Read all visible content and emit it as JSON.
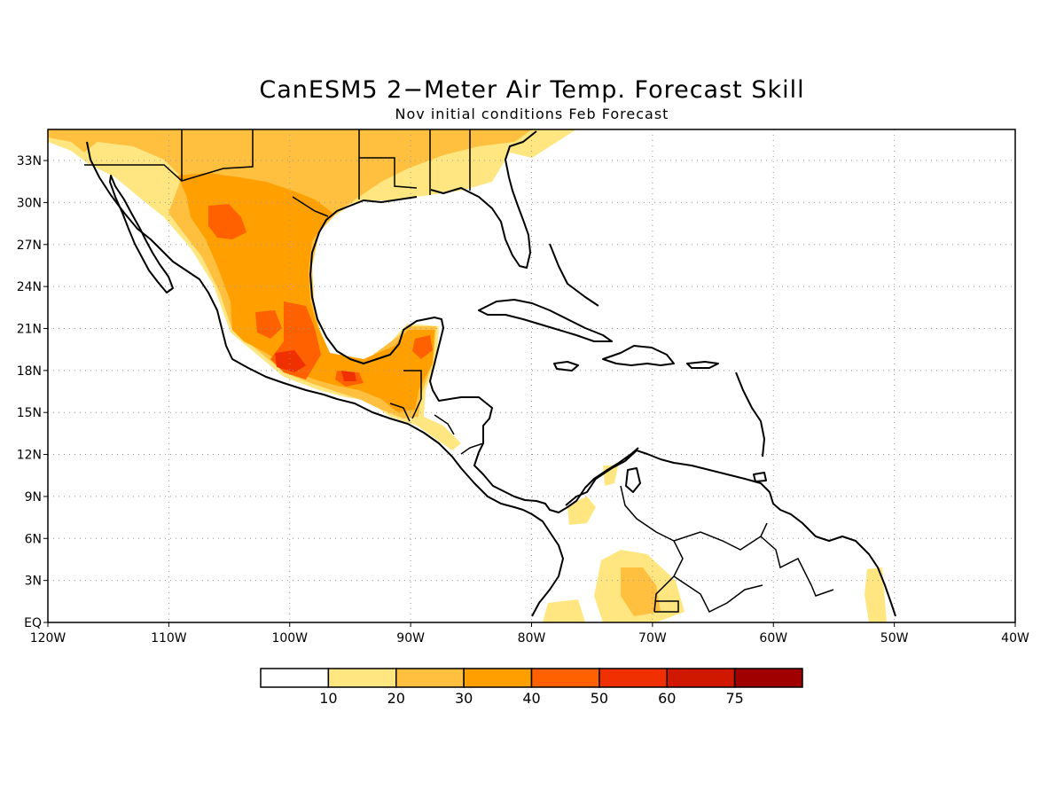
{
  "title": "CanESM5 2−Meter Air Temp. Forecast Skill",
  "subtitle": "Nov initial conditions  Feb Forecast",
  "lat_labels": [
    "EQ",
    "3N",
    "6N",
    "9N",
    "12N",
    "15N",
    "18N",
    "21N",
    "24N",
    "27N",
    "30N",
    "33N"
  ],
  "lon_labels": [
    "120W",
    "110W",
    "100W",
    "90W",
    "80W",
    "70W",
    "60W",
    "50W",
    "40W"
  ],
  "colorbar": {
    "labels": [
      "10",
      "20",
      "30",
      "40",
      "50",
      "60",
      "75"
    ],
    "colors": [
      "#ffffff",
      "#ffe680",
      "#ffc040",
      "#ffa000",
      "#ff6000",
      "#f03000",
      "#d01800",
      "#a00000"
    ]
  }
}
